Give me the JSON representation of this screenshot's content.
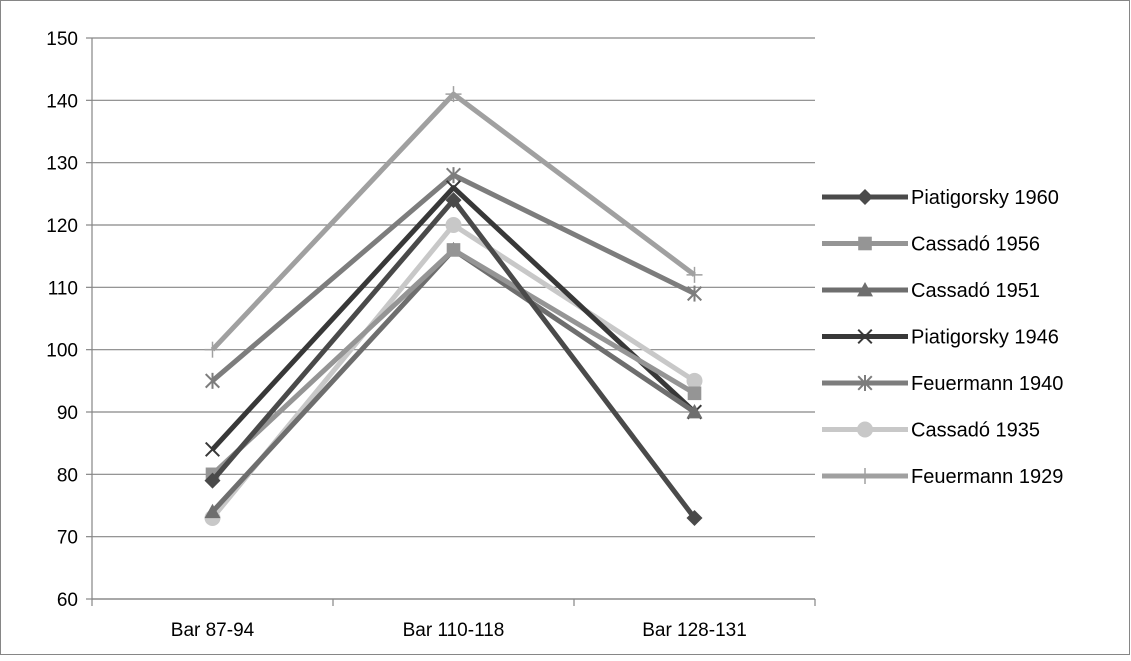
{
  "chart_data": {
    "type": "line",
    "title": "",
    "xlabel": "",
    "ylabel": "",
    "categories": [
      "Bar 87-94",
      "Bar 110-118",
      "Bar 128-131"
    ],
    "ylim": [
      60,
      150
    ],
    "yticks": [
      60,
      70,
      80,
      90,
      100,
      110,
      120,
      130,
      140,
      150
    ],
    "grid": true,
    "legend_position": "right",
    "series": [
      {
        "name": "Piatigorsky 1960",
        "values": [
          79,
          124,
          73
        ],
        "color": "#4a4a4a",
        "marker": "diamond"
      },
      {
        "name": "Cassadó 1956",
        "values": [
          80,
          116,
          93
        ],
        "color": "#959595",
        "marker": "square"
      },
      {
        "name": "Cassadó 1951",
        "values": [
          74,
          116,
          90
        ],
        "color": "#6e6e6e",
        "marker": "triangle"
      },
      {
        "name": "Piatigorsky 1946",
        "values": [
          84,
          126,
          90
        ],
        "color": "#383838",
        "marker": "x"
      },
      {
        "name": "Feuermann 1940",
        "values": [
          95,
          128,
          109
        ],
        "color": "#7d7d7d",
        "marker": "star"
      },
      {
        "name": "Cassadó 1935",
        "values": [
          73,
          120,
          95
        ],
        "color": "#c8c8c8",
        "marker": "circle"
      },
      {
        "name": "Feuermann 1929",
        "values": [
          100,
          141,
          112
        ],
        "color": "#a0a0a0",
        "marker": "plus"
      }
    ]
  }
}
